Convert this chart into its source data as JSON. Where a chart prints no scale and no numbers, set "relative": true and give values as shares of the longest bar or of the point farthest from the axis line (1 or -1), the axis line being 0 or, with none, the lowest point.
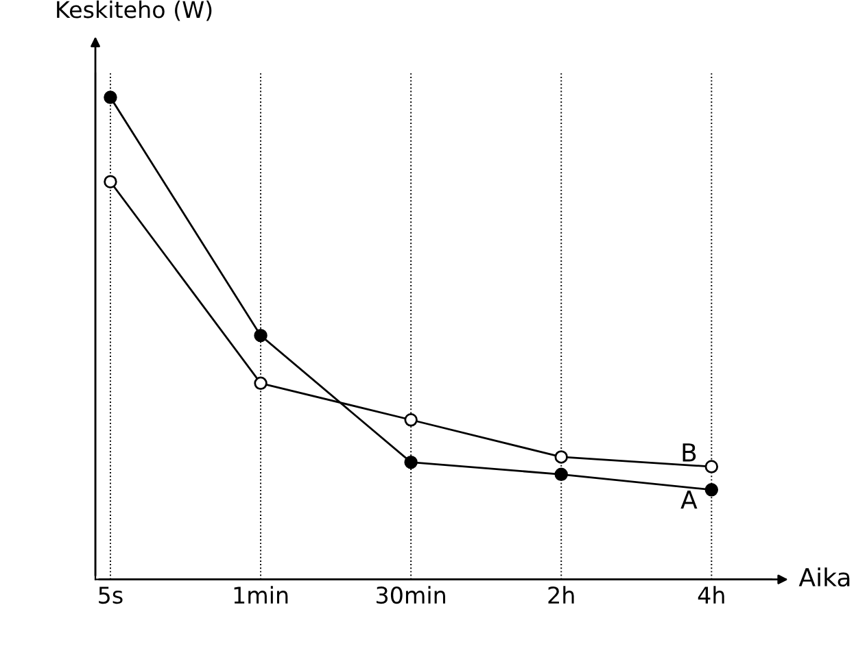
{
  "chart_data": {
    "type": "line",
    "relative": true,
    "xlabel": "Aika",
    "ylabel": "Keskiteho (W)",
    "categories": [
      "5s",
      "1min",
      "30min",
      "2h",
      "4h"
    ],
    "series": [
      {
        "name": "A",
        "color": "#000000",
        "values": [
          1.0,
          0.506,
          0.243,
          0.218,
          0.186
        ]
      },
      {
        "name": "B",
        "color": "#000000",
        "values": [
          0.825,
          0.407,
          0.331,
          0.254,
          0.234
        ]
      }
    ],
    "marker": "circle",
    "grid": "x",
    "legend": false
  }
}
